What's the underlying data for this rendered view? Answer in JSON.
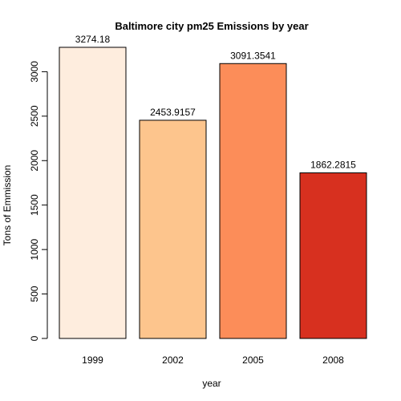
{
  "chart_data": {
    "type": "bar",
    "title": "Baltimore city pm25 Emissions by year",
    "xlabel": "year",
    "ylabel": "Tons of Emmission",
    "categories": [
      "1999",
      "2002",
      "2005",
      "2008"
    ],
    "values": [
      3274.18,
      2453.9157,
      3091.3541,
      1862.2815
    ],
    "value_labels": [
      "3274.18",
      "2453.9157",
      "3091.3541",
      "1862.2815"
    ],
    "bar_colors": [
      "#FEEDDE",
      "#FDC58D",
      "#FC8D59",
      "#D7301F"
    ],
    "yticks": [
      0,
      500,
      1000,
      1500,
      2000,
      2500,
      3000
    ],
    "ylim": [
      0,
      3274.18
    ],
    "grid": false,
    "legend": "none"
  }
}
